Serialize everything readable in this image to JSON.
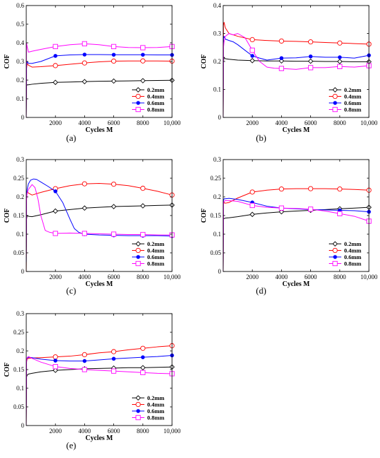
{
  "figure": {
    "xlabel": "Cycles M",
    "ylabel": "COF",
    "legend_labels": [
      "0.2mm",
      "0.4mm",
      "0.6mm",
      "0.8mm"
    ],
    "series_colors": [
      "#000000",
      "#ff0000",
      "#0000ff",
      "#ff00ff"
    ],
    "series_markers": [
      "diamond",
      "circle",
      "filled-circle",
      "square"
    ]
  },
  "chart_data": [
    {
      "label": "(a)",
      "type": "line",
      "xlabel": "Cycles M",
      "ylabel": "COF",
      "xlim": [
        0,
        10000
      ],
      "ylim": [
        0,
        0.6
      ],
      "xticks": [
        2000,
        4000,
        6000,
        8000,
        10000
      ],
      "xtick_labels": [
        "2000",
        "4000",
        "6000",
        "8000",
        "10,000"
      ],
      "yticks": [
        0,
        0.1,
        0.2,
        0.3,
        0.4,
        0.5,
        0.6
      ],
      "ytick_labels": [
        "0",
        "0.1",
        "0.2",
        "0.3",
        "0.4",
        "0.5",
        "0.6"
      ],
      "legend_position": "bottom-right",
      "series": [
        {
          "name": "0.2mm",
          "color": "#000000",
          "marker": "diamond",
          "x": [
            0,
            20,
            60,
            150,
            400,
            1000,
            2000,
            3000,
            4000,
            5000,
            6000,
            7000,
            8000,
            9000,
            10000
          ],
          "y": [
            0,
            0.17,
            0.175,
            0.175,
            0.178,
            0.183,
            0.188,
            0.19,
            0.192,
            0.194,
            0.195,
            0.196,
            0.197,
            0.198,
            0.199
          ]
        },
        {
          "name": "0.4mm",
          "color": "#ff0000",
          "marker": "circle",
          "x": [
            0,
            20,
            60,
            150,
            400,
            1000,
            2000,
            3000,
            4000,
            5000,
            6000,
            7000,
            8000,
            9000,
            10000
          ],
          "y": [
            0,
            0.26,
            0.29,
            0.28,
            0.27,
            0.272,
            0.278,
            0.285,
            0.292,
            0.298,
            0.302,
            0.303,
            0.303,
            0.303,
            0.302
          ]
        },
        {
          "name": "0.6mm",
          "color": "#0000ff",
          "marker": "filled-circle",
          "x": [
            0,
            20,
            60,
            150,
            400,
            1000,
            2000,
            3000,
            4000,
            5000,
            6000,
            7000,
            8000,
            9000,
            10000
          ],
          "y": [
            0,
            0.28,
            0.3,
            0.29,
            0.29,
            0.3,
            0.33,
            0.335,
            0.337,
            0.337,
            0.336,
            0.336,
            0.336,
            0.335,
            0.335
          ]
        },
        {
          "name": "0.8mm",
          "color": "#ff00ff",
          "marker": "square",
          "x": [
            0,
            20,
            60,
            150,
            400,
            1000,
            2000,
            3000,
            4000,
            5000,
            6000,
            7000,
            8000,
            9000,
            10000
          ],
          "y": [
            0,
            0.4,
            0.38,
            0.35,
            0.355,
            0.365,
            0.38,
            0.39,
            0.395,
            0.39,
            0.38,
            0.375,
            0.374,
            0.375,
            0.38
          ]
        }
      ]
    },
    {
      "label": "(b)",
      "type": "line",
      "xlabel": "Cycles M",
      "ylabel": "COF",
      "xlim": [
        0,
        10000
      ],
      "ylim": [
        0,
        0.4
      ],
      "xticks": [
        2000,
        4000,
        6000,
        8000,
        10000
      ],
      "xtick_labels": [
        "2000",
        "4000",
        "6000",
        "8000",
        "10,000"
      ],
      "yticks": [
        0,
        0.1,
        0.2,
        0.3,
        0.4
      ],
      "ytick_labels": [
        "0",
        "0.1",
        "0.2",
        "0.3",
        "0.4"
      ],
      "legend_position": "bottom-right",
      "series": [
        {
          "name": "0.2mm",
          "color": "#000000",
          "marker": "diamond",
          "x": [
            0,
            20,
            60,
            150,
            400,
            1000,
            2000,
            3000,
            4000,
            5000,
            6000,
            7000,
            8000,
            9000,
            10000
          ],
          "y": [
            0,
            0.2,
            0.215,
            0.21,
            0.208,
            0.205,
            0.203,
            0.202,
            0.202,
            0.201,
            0.201,
            0.2,
            0.2,
            0.199,
            0.199
          ]
        },
        {
          "name": "0.4mm",
          "color": "#ff0000",
          "marker": "circle",
          "x": [
            0,
            20,
            60,
            150,
            400,
            1000,
            2000,
            3000,
            4000,
            5000,
            6000,
            7000,
            8000,
            9000,
            10000
          ],
          "y": [
            0,
            0.33,
            0.34,
            0.32,
            0.3,
            0.29,
            0.278,
            0.275,
            0.273,
            0.272,
            0.27,
            0.268,
            0.266,
            0.264,
            0.262
          ]
        },
        {
          "name": "0.6mm",
          "color": "#0000ff",
          "marker": "filled-circle",
          "x": [
            0,
            20,
            60,
            150,
            400,
            700,
            1000,
            1500,
            2000,
            2500,
            3000,
            4000,
            5000,
            6000,
            7000,
            8000,
            9000,
            10000
          ],
          "y": [
            0.035,
            0.28,
            0.29,
            0.28,
            0.275,
            0.27,
            0.26,
            0.24,
            0.22,
            0.212,
            0.205,
            0.212,
            0.213,
            0.218,
            0.215,
            0.215,
            0.212,
            0.222
          ]
        },
        {
          "name": "0.8mm",
          "color": "#ff00ff",
          "marker": "square",
          "x": [
            0,
            20,
            60,
            150,
            400,
            700,
            1000,
            1500,
            2000,
            2500,
            3000,
            3500,
            4000,
            5000,
            6000,
            7000,
            8000,
            9000,
            10000
          ],
          "y": [
            0,
            0.25,
            0.27,
            0.29,
            0.3,
            0.295,
            0.3,
            0.285,
            0.24,
            0.2,
            0.18,
            0.176,
            0.175,
            0.172,
            0.178,
            0.178,
            0.182,
            0.18,
            0.185
          ]
        }
      ]
    },
    {
      "label": "(c)",
      "type": "line",
      "xlabel": "Cycles M",
      "ylabel": "COF",
      "xlim": [
        0,
        10000
      ],
      "ylim": [
        0,
        0.3
      ],
      "xticks": [
        2000,
        4000,
        6000,
        8000,
        10000
      ],
      "xtick_labels": [
        "2000",
        "4000",
        "6000",
        "8000",
        "10,000"
      ],
      "yticks": [
        0,
        0.05,
        0.1,
        0.15,
        0.2,
        0.25,
        0.3
      ],
      "ytick_labels": [
        "0",
        "0.05",
        "0.1",
        "0.15",
        "0.2",
        "0.25",
        "0.3"
      ],
      "legend_position": "bottom-right",
      "series": [
        {
          "name": "0.2mm",
          "color": "#000000",
          "marker": "diamond",
          "x": [
            0,
            20,
            60,
            150,
            400,
            1000,
            2000,
            3000,
            4000,
            5000,
            6000,
            7000,
            8000,
            9000,
            10000
          ],
          "y": [
            0,
            0.14,
            0.15,
            0.148,
            0.147,
            0.152,
            0.162,
            0.166,
            0.17,
            0.172,
            0.174,
            0.175,
            0.176,
            0.177,
            0.178
          ]
        },
        {
          "name": "0.4mm",
          "color": "#ff0000",
          "marker": "circle",
          "x": [
            0,
            20,
            60,
            150,
            400,
            1000,
            2000,
            3000,
            4000,
            5000,
            6000,
            7000,
            8000,
            9000,
            10000
          ],
          "y": [
            0,
            0.2,
            0.215,
            0.21,
            0.205,
            0.212,
            0.222,
            0.23,
            0.235,
            0.236,
            0.234,
            0.23,
            0.223,
            0.215,
            0.205
          ]
        },
        {
          "name": "0.6mm",
          "color": "#0000ff",
          "marker": "filled-circle",
          "x": [
            0,
            20,
            60,
            150,
            300,
            500,
            700,
            1000,
            1500,
            2000,
            2500,
            3000,
            3300,
            3600,
            4000,
            5000,
            6000,
            7000,
            8000,
            9000,
            10000
          ],
          "y": [
            0.025,
            0.2,
            0.22,
            0.235,
            0.245,
            0.248,
            0.247,
            0.24,
            0.228,
            0.215,
            0.185,
            0.14,
            0.115,
            0.105,
            0.1,
            0.098,
            0.097,
            0.096,
            0.096,
            0.096,
            0.095
          ]
        },
        {
          "name": "0.8mm",
          "color": "#ff00ff",
          "marker": "square",
          "x": [
            0,
            20,
            60,
            150,
            400,
            600,
            800,
            1000,
            1300,
            1600,
            2000,
            3000,
            4000,
            5000,
            6000,
            7000,
            8000,
            9000,
            10000
          ],
          "y": [
            0.04,
            0.19,
            0.21,
            0.22,
            0.233,
            0.225,
            0.195,
            0.15,
            0.11,
            0.105,
            0.102,
            0.103,
            0.102,
            0.101,
            0.1,
            0.099,
            0.099,
            0.098,
            0.098
          ]
        }
      ]
    },
    {
      "label": "(d)",
      "type": "line",
      "xlabel": "Cycles M",
      "ylabel": "COF",
      "xlim": [
        0,
        10000
      ],
      "ylim": [
        0,
        0.3
      ],
      "xticks": [
        2000,
        4000,
        6000,
        8000,
        10000
      ],
      "xtick_labels": [
        "2000",
        "4000",
        "6000",
        "8000",
        "10,000"
      ],
      "yticks": [
        0,
        0.05,
        0.1,
        0.15,
        0.2,
        0.25,
        0.3
      ],
      "ytick_labels": [
        "0",
        "0.05",
        "0.1",
        "0.15",
        "0.2",
        "0.25",
        "0.3"
      ],
      "legend_position": "bottom-right",
      "series": [
        {
          "name": "0.2mm",
          "color": "#000000",
          "marker": "diamond",
          "x": [
            0,
            20,
            60,
            150,
            400,
            1000,
            2000,
            3000,
            4000,
            5000,
            6000,
            7000,
            8000,
            9000,
            10000
          ],
          "y": [
            0,
            0.14,
            0.142,
            0.143,
            0.144,
            0.147,
            0.153,
            0.157,
            0.16,
            0.162,
            0.164,
            0.166,
            0.168,
            0.17,
            0.172
          ]
        },
        {
          "name": "0.4mm",
          "color": "#ff0000",
          "marker": "circle",
          "x": [
            0,
            20,
            60,
            150,
            400,
            1000,
            2000,
            3000,
            4000,
            5000,
            6000,
            7000,
            8000,
            9000,
            10000
          ],
          "y": [
            0,
            0.18,
            0.185,
            0.183,
            0.185,
            0.197,
            0.213,
            0.218,
            0.221,
            0.222,
            0.222,
            0.222,
            0.221,
            0.22,
            0.218
          ]
        },
        {
          "name": "0.6mm",
          "color": "#0000ff",
          "marker": "filled-circle",
          "x": [
            0,
            20,
            60,
            150,
            400,
            1000,
            2000,
            3000,
            4000,
            5000,
            6000,
            7000,
            8000,
            9000,
            10000
          ],
          "y": [
            0.01,
            0.19,
            0.195,
            0.195,
            0.196,
            0.193,
            0.185,
            0.175,
            0.17,
            0.168,
            0.166,
            0.165,
            0.164,
            0.163,
            0.16
          ]
        },
        {
          "name": "0.8mm",
          "color": "#ff00ff",
          "marker": "square",
          "x": [
            0,
            20,
            60,
            150,
            400,
            1000,
            2000,
            3000,
            4000,
            5000,
            6000,
            7000,
            8000,
            9000,
            10000
          ],
          "y": [
            0,
            0.18,
            0.188,
            0.19,
            0.19,
            0.188,
            0.177,
            0.172,
            0.17,
            0.169,
            0.167,
            0.162,
            0.155,
            0.148,
            0.135
          ]
        }
      ]
    },
    {
      "label": "(e)",
      "type": "line",
      "xlabel": "Cycles M",
      "ylabel": "COF",
      "xlim": [
        0,
        10000
      ],
      "ylim": [
        0,
        0.3
      ],
      "xticks": [
        2000,
        4000,
        6000,
        8000,
        10000
      ],
      "xtick_labels": [
        "2000",
        "4000",
        "6000",
        "8000",
        "10,000"
      ],
      "yticks": [
        0,
        0.05,
        0.1,
        0.15,
        0.2,
        0.25,
        0.3
      ],
      "ytick_labels": [
        "0",
        "0.05",
        "0.1",
        "0.15",
        "0.2",
        "0.25",
        "0.3"
      ],
      "legend_position": "bottom-right",
      "series": [
        {
          "name": "0.2mm",
          "color": "#000000",
          "marker": "diamond",
          "x": [
            0,
            20,
            60,
            150,
            400,
            1000,
            2000,
            3000,
            4000,
            5000,
            6000,
            7000,
            8000,
            9000,
            10000
          ],
          "y": [
            0,
            0.13,
            0.135,
            0.138,
            0.14,
            0.144,
            0.148,
            0.15,
            0.152,
            0.153,
            0.154,
            0.155,
            0.155,
            0.156,
            0.157
          ]
        },
        {
          "name": "0.4mm",
          "color": "#ff0000",
          "marker": "circle",
          "x": [
            0,
            20,
            60,
            150,
            400,
            1000,
            2000,
            3000,
            4000,
            5000,
            6000,
            7000,
            8000,
            9000,
            10000
          ],
          "y": [
            0,
            0.17,
            0.178,
            0.18,
            0.181,
            0.182,
            0.184,
            0.186,
            0.19,
            0.195,
            0.198,
            0.203,
            0.207,
            0.211,
            0.214
          ]
        },
        {
          "name": "0.6mm",
          "color": "#0000ff",
          "marker": "filled-circle",
          "x": [
            0,
            20,
            60,
            150,
            400,
            1000,
            2000,
            3000,
            4000,
            5000,
            6000,
            7000,
            8000,
            9000,
            10000
          ],
          "y": [
            0.02,
            0.175,
            0.18,
            0.183,
            0.182,
            0.178,
            0.174,
            0.173,
            0.173,
            0.176,
            0.179,
            0.181,
            0.183,
            0.185,
            0.188
          ]
        },
        {
          "name": "0.8mm",
          "color": "#ff00ff",
          "marker": "square",
          "x": [
            0,
            20,
            60,
            150,
            400,
            1000,
            2000,
            3000,
            4000,
            5000,
            6000,
            7000,
            8000,
            9000,
            10000
          ],
          "y": [
            0,
            0.17,
            0.182,
            0.185,
            0.18,
            0.17,
            0.158,
            0.153,
            0.15,
            0.148,
            0.146,
            0.144,
            0.142,
            0.14,
            0.139
          ]
        }
      ]
    }
  ]
}
